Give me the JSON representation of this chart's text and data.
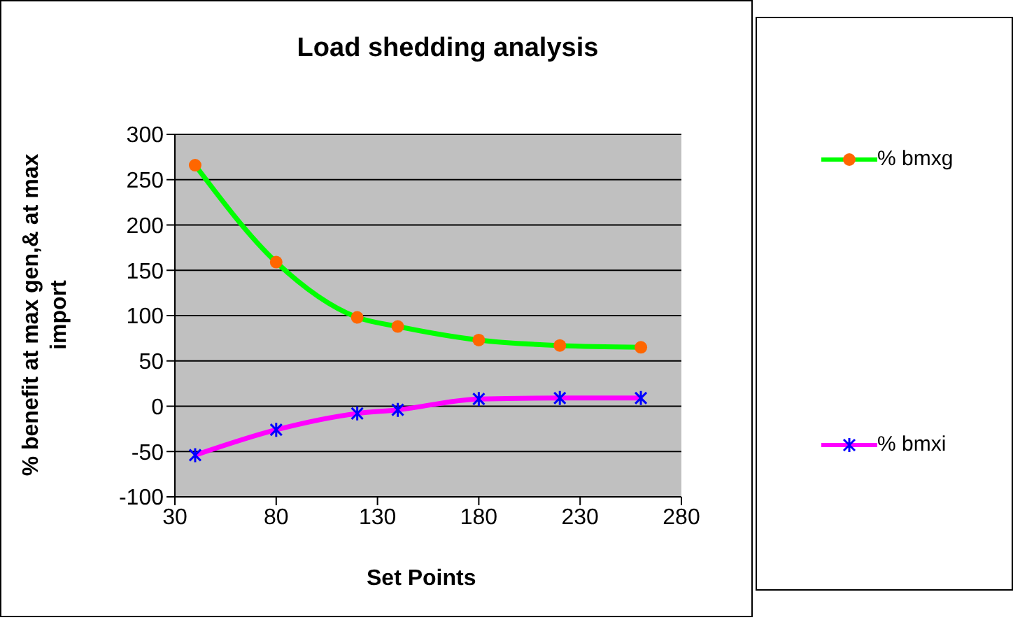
{
  "chart_data": {
    "type": "line",
    "title": "Load shedding analysis",
    "xlabel": "Set Points",
    "ylabel": "% benefit at max gen,& at max import",
    "x": [
      40,
      80,
      120,
      140,
      180,
      220,
      260
    ],
    "series": [
      {
        "name": "% bmxg",
        "color": "#00ff00",
        "marker": "circle",
        "colors": [
          "#ff6600",
          "#ff6600",
          "#ff6600",
          "#ff6600",
          "#ff6600",
          "#ff6600",
          "#ff6600"
        ],
        "values": [
          266,
          159,
          98,
          88,
          73,
          67,
          65
        ]
      },
      {
        "name": "% bmxi",
        "color": "#ff00ff",
        "marker": "cross",
        "colors": [
          "#0000ff",
          "#0000ff",
          "#0000ff",
          "#0000ff",
          "#0000ff",
          "#0000ff",
          "#0000ff"
        ],
        "values": [
          -54,
          -26,
          -8,
          -4,
          8,
          9,
          9
        ]
      }
    ],
    "xlim": [
      30,
      280
    ],
    "xticks": [
      30,
      80,
      130,
      180,
      230,
      280
    ],
    "ylim": [
      -100,
      300
    ],
    "yticks": [
      -100,
      -50,
      0,
      50,
      100,
      150,
      200,
      250,
      300
    ],
    "grid": "y",
    "legend": "right"
  }
}
